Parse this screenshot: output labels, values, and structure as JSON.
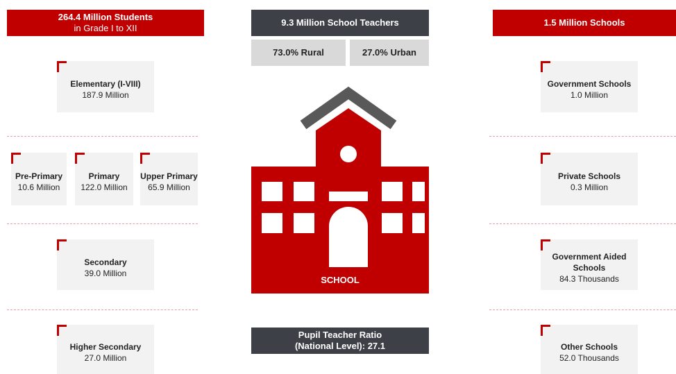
{
  "students": {
    "title": "264.4 Million Students",
    "subtitle": "in Grade I to XII",
    "elementary": {
      "name": "Elementary (I-VIII)",
      "value": "187.9 Million"
    },
    "pre_primary": {
      "name": "Pre-Primary",
      "value": "10.6 Million"
    },
    "primary": {
      "name": "Primary",
      "value": "122.0 Million"
    },
    "upper_primary": {
      "name": "Upper Primary",
      "value": "65.9 Million"
    },
    "secondary": {
      "name": "Secondary",
      "value": "39.0 Million"
    },
    "higher_secondary": {
      "name": "Higher Secondary",
      "value": "27.0 Million"
    }
  },
  "teachers": {
    "title": "9.3 Million School Teachers",
    "rural": "73.0% Rural",
    "urban": "27.0% Urban"
  },
  "icon_label": "SCHOOL",
  "ratio": {
    "line1": "Pupil Teacher Ratio",
    "line2": "(National Level): 27.1"
  },
  "schools": {
    "title": "1.5 Million Schools",
    "government": {
      "name": "Government Schools",
      "value": "1.0 Million"
    },
    "private": {
      "name": "Private Schools",
      "value": "0.3 Million"
    },
    "aided": {
      "name": "Government Aided Schools",
      "value": "84.3 Thousands"
    },
    "other": {
      "name": "Other Schools",
      "value": "52.0 Thousands"
    }
  }
}
